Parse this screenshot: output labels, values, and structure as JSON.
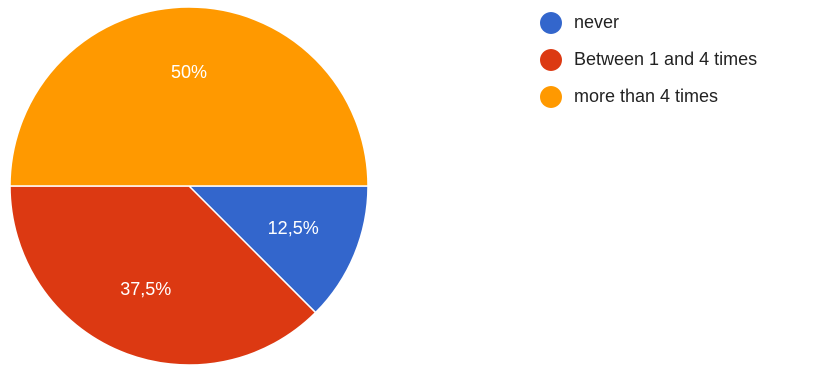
{
  "chart_data": {
    "type": "pie",
    "categories": [
      "never",
      "Between 1 and 4 times",
      "more than 4 times"
    ],
    "values": [
      12.5,
      37.5,
      50
    ],
    "value_labels": [
      "12,5%",
      "37,5%",
      "50%"
    ],
    "colors": [
      "#3366cc",
      "#dc3912",
      "#ff9900"
    ],
    "legend_position": "top-right",
    "title": ""
  }
}
